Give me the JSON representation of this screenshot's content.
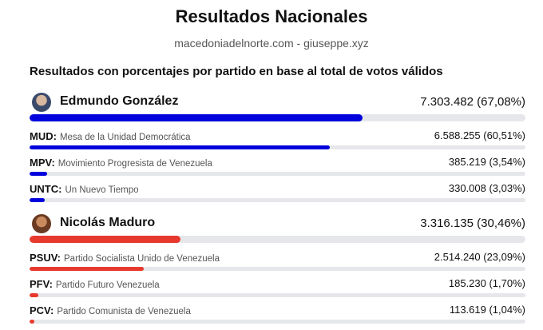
{
  "title": "Resultados Nacionales",
  "subtitle": "macedoniadelnorte.com - giuseppe.xyz",
  "heading": "Resultados con porcentajes por partido en base al total de votos válidos",
  "candidates": [
    {
      "name": "Edmundo González",
      "result": "7.303.482 (67,08%)",
      "percent": 67.08,
      "color": "#0202dc",
      "parties": [
        {
          "abbr": "MUD:",
          "name": "Mesa de la Unidad Democrática",
          "result": "6.588.255 (60,51%)",
          "percent": 60.51
        },
        {
          "abbr": "MPV:",
          "name": "Movimiento Progresista de Venezuela",
          "result": "385.219 (3,54%)",
          "percent": 3.54
        },
        {
          "abbr": "UNTC:",
          "name": "Un Nuevo Tiempo",
          "result": "330.008 (3,03%)",
          "percent": 3.03
        }
      ]
    },
    {
      "name": "Nicolás Maduro",
      "result": "3.316.135 (30,46%)",
      "percent": 30.46,
      "color": "#e8392e",
      "parties": [
        {
          "abbr": "PSUV:",
          "name": "Partido Socialista Unido de Venezuela",
          "result": "2.514.240 (23,09%)",
          "percent": 23.09
        },
        {
          "abbr": "PFV:",
          "name": "Partido Futuro Venezuela",
          "result": "185.230 (1,70%)",
          "percent": 1.7
        },
        {
          "abbr": "PCV:",
          "name": "Partido Comunista de Venezuela",
          "result": "113.619 (1,04%)",
          "percent": 1.04
        }
      ]
    }
  ]
}
